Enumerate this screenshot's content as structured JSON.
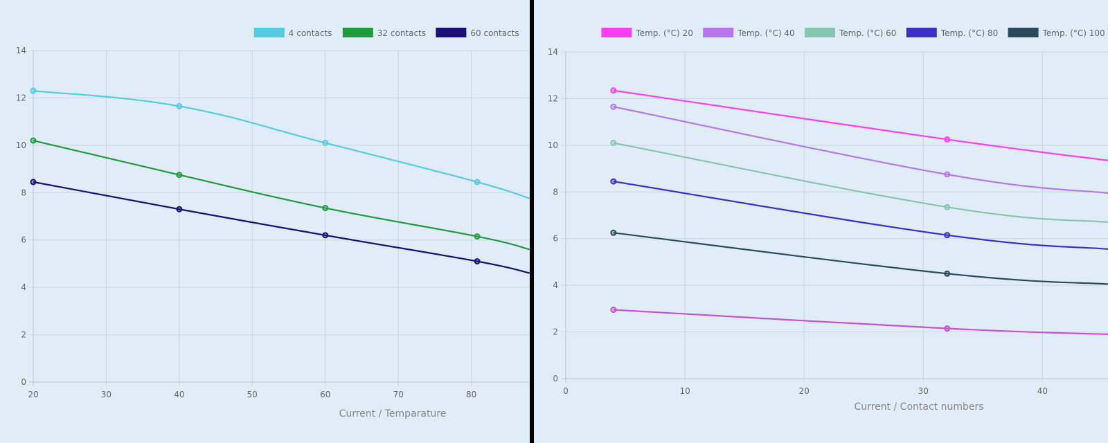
{
  "chart_data": [
    {
      "type": "line",
      "xlabel": "Current / Temparature",
      "ylabel": "",
      "xlim": [
        20,
        88
      ],
      "ylim": [
        0,
        14
      ],
      "x_ticks": [
        20,
        30,
        40,
        50,
        60,
        70,
        80
      ],
      "y_ticks": [
        0,
        2,
        4,
        6,
        8,
        10,
        12,
        14
      ],
      "grid": true,
      "legend": "top-right",
      "series": [
        {
          "name": "4 contacts",
          "color": "#56cbe0",
          "x": [
            20,
            40,
            60,
            80.8
          ],
          "y": [
            12.3,
            11.65,
            10.1,
            8.45
          ],
          "tail_y": 7.75
        },
        {
          "name": "32 contacts",
          "color": "#1f9a3c",
          "x": [
            20,
            40,
            60,
            80.8
          ],
          "y": [
            10.2,
            8.75,
            7.35,
            6.15
          ],
          "tail_y": 5.6
        },
        {
          "name": "60 contacts",
          "color": "#1a0f78",
          "x": [
            20,
            40,
            60,
            80.8
          ],
          "y": [
            8.45,
            7.3,
            6.2,
            5.1
          ],
          "tail_y": 4.6
        }
      ]
    },
    {
      "type": "line",
      "xlabel": "Current / Contact numbers",
      "ylabel": "",
      "xlim": [
        0,
        45.5
      ],
      "ylim": [
        0,
        14
      ],
      "x_ticks": [
        0,
        10,
        20,
        30,
        40
      ],
      "y_ticks": [
        0,
        2,
        4,
        6,
        8,
        10,
        12,
        14
      ],
      "grid": true,
      "legend": "top-right",
      "series": [
        {
          "name": "Temp. (°C) 20",
          "color": "#f93ff0",
          "x": [
            4,
            32
          ],
          "y": [
            12.35,
            10.25
          ],
          "tail_y": 9.35
        },
        {
          "name": "Temp. (°C) 40",
          "color": "#b777ec",
          "x": [
            4,
            32
          ],
          "y": [
            11.65,
            8.75
          ],
          "tail_y": 7.95
        },
        {
          "name": "Temp. (°C) 60",
          "color": "#86c6b0",
          "x": [
            4,
            32
          ],
          "y": [
            10.1,
            7.35
          ],
          "tail_y": 6.7
        },
        {
          "name": "Temp. (°C) 80",
          "color": "#3b30c4",
          "x": [
            4,
            32
          ],
          "y": [
            8.45,
            6.15
          ],
          "tail_y": 5.55
        },
        {
          "name": "Temp. (°C) 100",
          "color": "#2b4a5c",
          "x": [
            4,
            32
          ],
          "y": [
            6.25,
            4.5
          ],
          "tail_y": 4.05
        },
        {
          "name": "",
          "color": "#c94fd4",
          "x": [
            4,
            32
          ],
          "y": [
            2.95,
            2.15
          ],
          "tail_y": 1.9
        }
      ]
    }
  ]
}
